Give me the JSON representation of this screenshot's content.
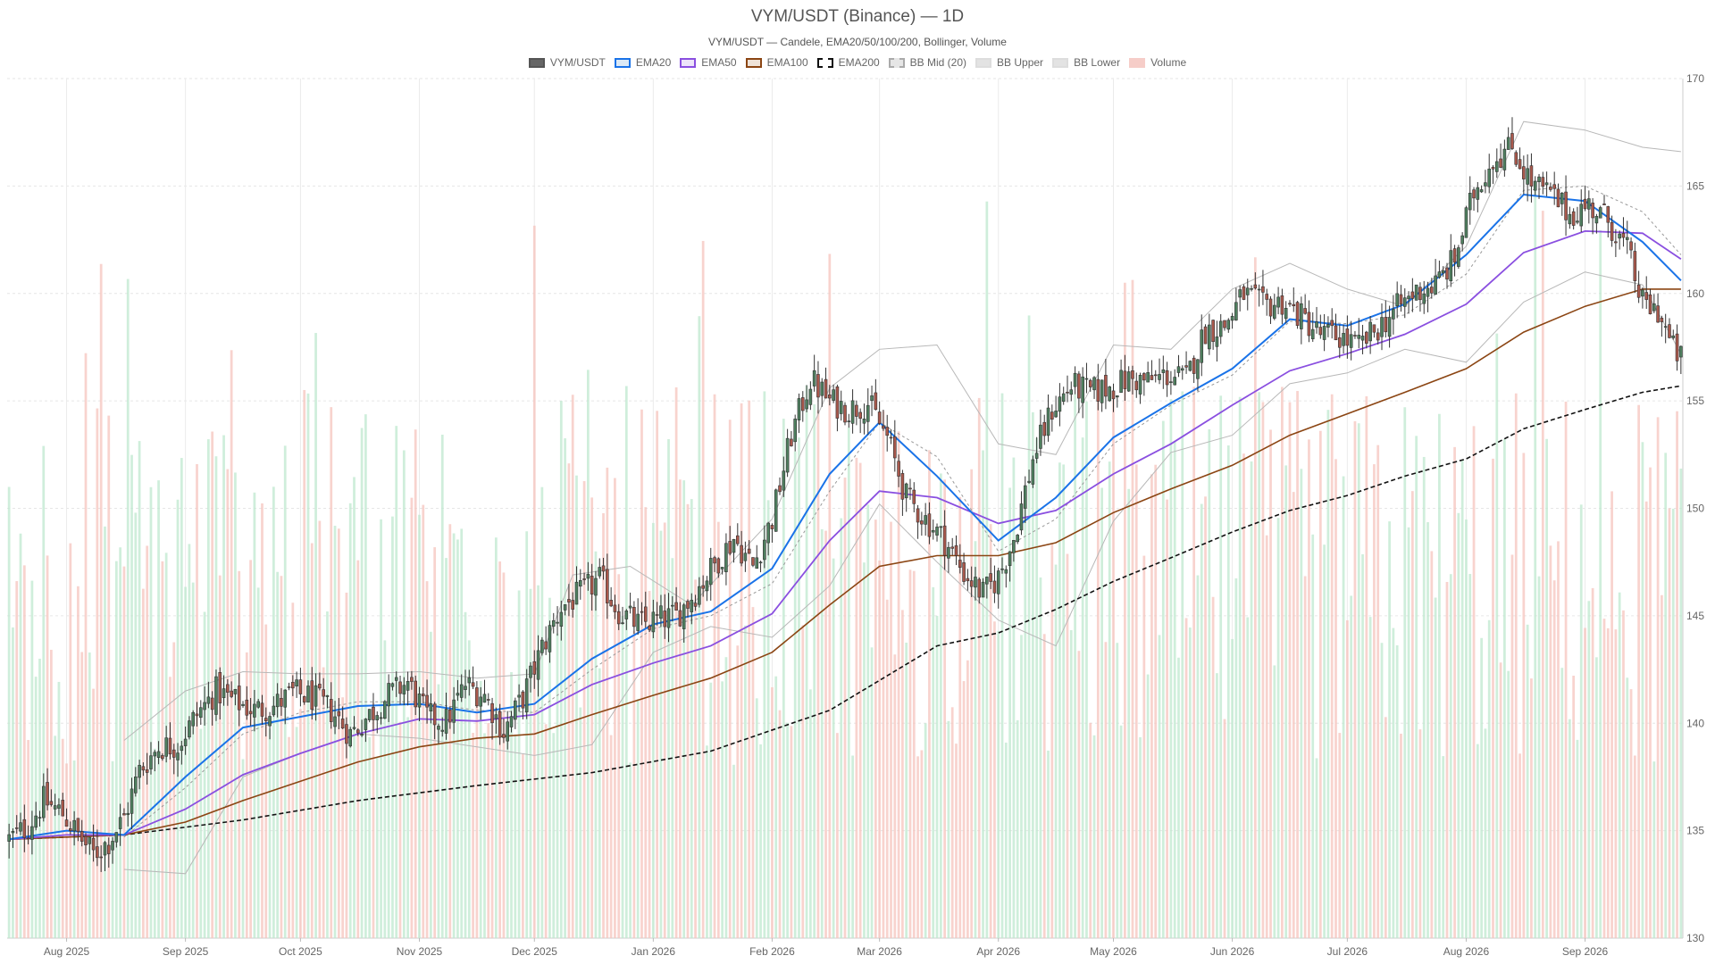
{
  "chart_data": {
    "type": "candlestick",
    "title": "VYM/USDT (Binance) — 1D",
    "subtitle": "VYM/USDT — Candele, EMA20/50/100/200, Bollinger, Volume",
    "legend": [
      {
        "name": "VYM/USDT",
        "fill": "#666666",
        "stroke": "#555555",
        "dash": false
      },
      {
        "name": "EMA20",
        "fill": "#dbe9f6",
        "stroke": "#1a73e8",
        "dash": false
      },
      {
        "name": "EMA50",
        "fill": "#ede4fa",
        "stroke": "#8a4fe0",
        "dash": false
      },
      {
        "name": "EMA100",
        "fill": "#efe3d8",
        "stroke": "#8b4513",
        "dash": false
      },
      {
        "name": "EMA200",
        "fill": "#ffffff",
        "stroke": "#111111",
        "dash": true
      },
      {
        "name": "BB Mid (20)",
        "fill": "#e6e6e6",
        "stroke": "#aaaaaa",
        "dash": true
      },
      {
        "name": "BB Upper",
        "fill": "#e3e3e3",
        "stroke": "#dddddd",
        "dash": false
      },
      {
        "name": "BB Lower",
        "fill": "#e3e3e3",
        "stroke": "#dddddd",
        "dash": false
      },
      {
        "name": "Volume",
        "fill": "#f6cdc8",
        "stroke": "#f6cdc8",
        "dash": false
      }
    ],
    "x_range": [
      "2025-07-17",
      "2026-09-26"
    ],
    "ylim": [
      130,
      170
    ],
    "y_ticks": [
      130,
      135,
      140,
      145,
      150,
      155,
      160,
      165,
      170
    ],
    "x_ticks": [
      {
        "label": "Aug 2025",
        "date": "2025-08-01"
      },
      {
        "label": "Sep 2025",
        "date": "2025-09-01"
      },
      {
        "label": "Oct 2025",
        "date": "2025-10-01"
      },
      {
        "label": "Nov 2025",
        "date": "2025-11-01"
      },
      {
        "label": "Dec 2025",
        "date": "2025-12-01"
      },
      {
        "label": "Jan 2026",
        "date": "2026-01-01"
      },
      {
        "label": "Feb 2026",
        "date": "2026-02-01"
      },
      {
        "label": "Mar 2026",
        "date": "2026-03-01"
      },
      {
        "label": "Apr 2026",
        "date": "2026-04-01"
      },
      {
        "label": "May 2026",
        "date": "2026-05-01"
      },
      {
        "label": "Jun 2026",
        "date": "2026-06-01"
      },
      {
        "label": "Jul 2026",
        "date": "2026-07-01"
      },
      {
        "label": "Aug 2026",
        "date": "2026-08-01"
      },
      {
        "label": "Sep 2026",
        "date": "2026-09-01"
      }
    ],
    "close_path": [
      [
        "2025-07-17",
        134.6
      ],
      [
        "2025-07-22",
        135.2
      ],
      [
        "2025-07-26",
        136.4
      ],
      [
        "2025-07-31",
        135.8
      ],
      [
        "2025-08-04",
        134.8
      ],
      [
        "2025-08-08",
        133.9
      ],
      [
        "2025-08-12",
        134.5
      ],
      [
        "2025-08-16",
        135.6
      ],
      [
        "2025-08-20",
        137.8
      ],
      [
        "2025-08-25",
        138.9
      ],
      [
        "2025-08-30",
        139.0
      ],
      [
        "2025-09-04",
        140.4
      ],
      [
        "2025-09-09",
        141.5
      ],
      [
        "2025-09-14",
        141.0
      ],
      [
        "2025-09-19",
        140.6
      ],
      [
        "2025-09-24",
        140.8
      ],
      [
        "2025-09-29",
        141.4
      ],
      [
        "2025-10-04",
        141.2
      ],
      [
        "2025-10-09",
        140.6
      ],
      [
        "2025-10-14",
        139.5
      ],
      [
        "2025-10-19",
        140.4
      ],
      [
        "2025-10-24",
        141.3
      ],
      [
        "2025-10-29",
        141.9
      ],
      [
        "2025-11-03",
        140.3
      ],
      [
        "2025-11-08",
        140.1
      ],
      [
        "2025-11-13",
        141.8
      ],
      [
        "2025-11-18",
        141.3
      ],
      [
        "2025-11-23",
        139.6
      ],
      [
        "2025-11-28",
        141.2
      ],
      [
        "2025-12-03",
        143.5
      ],
      [
        "2025-12-08",
        145.4
      ],
      [
        "2025-12-13",
        146.0
      ],
      [
        "2025-12-18",
        146.7
      ],
      [
        "2025-12-23",
        145.2
      ],
      [
        "2025-12-28",
        144.6
      ],
      [
        "2026-01-02",
        144.8
      ],
      [
        "2026-01-07",
        145.0
      ],
      [
        "2026-01-12",
        146.1
      ],
      [
        "2026-01-17",
        147.4
      ],
      [
        "2026-01-22",
        148.6
      ],
      [
        "2026-01-27",
        147.3
      ],
      [
        "2026-02-01",
        149.5
      ],
      [
        "2026-02-06",
        153.4
      ],
      [
        "2026-02-11",
        156.0
      ],
      [
        "2026-02-16",
        155.0
      ],
      [
        "2026-02-21",
        154.6
      ],
      [
        "2026-02-26",
        154.9
      ],
      [
        "2026-03-03",
        153.3
      ],
      [
        "2026-03-08",
        150.5
      ],
      [
        "2026-03-13",
        149.5
      ],
      [
        "2026-03-18",
        148.5
      ],
      [
        "2026-03-23",
        147.0
      ],
      [
        "2026-03-28",
        146.0
      ],
      [
        "2026-04-01",
        146.8
      ],
      [
        "2026-04-05",
        148.6
      ],
      [
        "2026-04-10",
        152.3
      ],
      [
        "2026-04-15",
        154.6
      ],
      [
        "2026-04-20",
        155.7
      ],
      [
        "2026-04-25",
        155.4
      ],
      [
        "2026-04-30",
        155.6
      ],
      [
        "2026-05-05",
        156.0
      ],
      [
        "2026-05-10",
        155.9
      ],
      [
        "2026-05-15",
        156.2
      ],
      [
        "2026-05-20",
        156.0
      ],
      [
        "2026-05-25",
        158.3
      ],
      [
        "2026-05-30",
        158.5
      ],
      [
        "2026-06-04",
        160.0
      ],
      [
        "2026-06-09",
        159.4
      ],
      [
        "2026-06-14",
        159.6
      ],
      [
        "2026-06-19",
        158.9
      ],
      [
        "2026-06-24",
        158.1
      ],
      [
        "2026-06-29",
        158.0
      ],
      [
        "2026-07-04",
        157.5
      ],
      [
        "2026-07-09",
        158.4
      ],
      [
        "2026-07-14",
        159.3
      ],
      [
        "2026-07-19",
        160.1
      ],
      [
        "2026-07-24",
        160.4
      ],
      [
        "2026-07-29",
        161.6
      ],
      [
        "2026-08-03",
        164.7
      ],
      [
        "2026-08-08",
        166.3
      ],
      [
        "2026-08-13",
        166.8
      ],
      [
        "2026-08-18",
        165.1
      ],
      [
        "2026-08-23",
        164.6
      ],
      [
        "2026-08-28",
        163.7
      ],
      [
        "2026-09-02",
        164.1
      ],
      [
        "2026-09-07",
        163.4
      ],
      [
        "2026-09-12",
        162.0
      ],
      [
        "2026-09-16",
        159.5
      ],
      [
        "2026-09-20",
        159.2
      ],
      [
        "2026-09-24",
        157.4
      ],
      [
        "2026-09-26",
        157.0
      ]
    ],
    "ema20": [
      [
        "2025-07-17",
        134.6
      ],
      [
        "2025-08-01",
        135.0
      ],
      [
        "2025-08-16",
        134.8
      ],
      [
        "2025-09-01",
        137.5
      ],
      [
        "2025-09-16",
        139.8
      ],
      [
        "2025-10-01",
        140.3
      ],
      [
        "2025-10-16",
        140.8
      ],
      [
        "2025-11-01",
        140.9
      ],
      [
        "2025-11-16",
        140.5
      ],
      [
        "2025-12-01",
        140.9
      ],
      [
        "2025-12-16",
        143.0
      ],
      [
        "2026-01-01",
        144.6
      ],
      [
        "2026-01-16",
        145.2
      ],
      [
        "2026-02-01",
        147.2
      ],
      [
        "2026-02-16",
        151.6
      ],
      [
        "2026-03-01",
        154.0
      ],
      [
        "2026-03-16",
        151.5
      ],
      [
        "2026-04-01",
        148.5
      ],
      [
        "2026-04-16",
        150.5
      ],
      [
        "2026-05-01",
        153.3
      ],
      [
        "2026-05-16",
        154.9
      ],
      [
        "2026-06-01",
        156.5
      ],
      [
        "2026-06-16",
        158.8
      ],
      [
        "2026-07-01",
        158.5
      ],
      [
        "2026-07-16",
        159.5
      ],
      [
        "2026-08-01",
        161.8
      ],
      [
        "2026-08-16",
        164.6
      ],
      [
        "2026-09-01",
        164.3
      ],
      [
        "2026-09-16",
        162.4
      ],
      [
        "2026-09-26",
        160.6
      ]
    ],
    "ema50": [
      [
        "2025-07-17",
        134.6
      ],
      [
        "2025-08-01",
        134.8
      ],
      [
        "2025-08-16",
        134.8
      ],
      [
        "2025-09-01",
        136.0
      ],
      [
        "2025-09-16",
        137.6
      ],
      [
        "2025-10-01",
        138.6
      ],
      [
        "2025-10-16",
        139.5
      ],
      [
        "2025-11-01",
        140.2
      ],
      [
        "2025-11-16",
        140.1
      ],
      [
        "2025-12-01",
        140.4
      ],
      [
        "2025-12-16",
        141.8
      ],
      [
        "2026-01-01",
        142.8
      ],
      [
        "2026-01-16",
        143.6
      ],
      [
        "2026-02-01",
        145.1
      ],
      [
        "2026-02-16",
        148.5
      ],
      [
        "2026-03-01",
        150.8
      ],
      [
        "2026-03-16",
        150.5
      ],
      [
        "2026-04-01",
        149.3
      ],
      [
        "2026-04-16",
        149.9
      ],
      [
        "2026-05-01",
        151.6
      ],
      [
        "2026-05-16",
        153.0
      ],
      [
        "2026-06-01",
        154.8
      ],
      [
        "2026-06-16",
        156.4
      ],
      [
        "2026-07-01",
        157.2
      ],
      [
        "2026-07-16",
        158.1
      ],
      [
        "2026-08-01",
        159.5
      ],
      [
        "2026-08-16",
        161.9
      ],
      [
        "2026-09-01",
        162.9
      ],
      [
        "2026-09-16",
        162.8
      ],
      [
        "2026-09-26",
        161.6
      ]
    ],
    "ema100": [
      [
        "2025-07-17",
        134.6
      ],
      [
        "2025-08-01",
        134.7
      ],
      [
        "2025-08-16",
        134.8
      ],
      [
        "2025-09-01",
        135.4
      ],
      [
        "2025-09-16",
        136.4
      ],
      [
        "2025-10-01",
        137.3
      ],
      [
        "2025-10-16",
        138.2
      ],
      [
        "2025-11-01",
        138.9
      ],
      [
        "2025-11-16",
        139.3
      ],
      [
        "2025-12-01",
        139.5
      ],
      [
        "2025-12-16",
        140.4
      ],
      [
        "2026-01-01",
        141.3
      ],
      [
        "2026-01-16",
        142.1
      ],
      [
        "2026-02-01",
        143.3
      ],
      [
        "2026-02-16",
        145.5
      ],
      [
        "2026-03-01",
        147.3
      ],
      [
        "2026-03-16",
        147.8
      ],
      [
        "2026-04-01",
        147.8
      ],
      [
        "2026-04-16",
        148.4
      ],
      [
        "2026-05-01",
        149.8
      ],
      [
        "2026-05-16",
        150.9
      ],
      [
        "2026-06-01",
        152.0
      ],
      [
        "2026-06-16",
        153.4
      ],
      [
        "2026-07-01",
        154.4
      ],
      [
        "2026-07-16",
        155.4
      ],
      [
        "2026-08-01",
        156.5
      ],
      [
        "2026-08-16",
        158.2
      ],
      [
        "2026-09-01",
        159.4
      ],
      [
        "2026-09-16",
        160.2
      ],
      [
        "2026-09-26",
        160.2
      ]
    ],
    "ema200": [
      [
        "2025-07-17",
        134.6
      ],
      [
        "2025-08-16",
        134.8
      ],
      [
        "2025-09-16",
        135.5
      ],
      [
        "2025-10-16",
        136.4
      ],
      [
        "2025-11-16",
        137.1
      ],
      [
        "2025-12-16",
        137.7
      ],
      [
        "2026-01-16",
        138.7
      ],
      [
        "2026-02-16",
        140.6
      ],
      [
        "2026-03-16",
        143.6
      ],
      [
        "2026-04-01",
        144.2
      ],
      [
        "2026-04-16",
        145.3
      ],
      [
        "2026-05-01",
        146.6
      ],
      [
        "2026-05-16",
        147.7
      ],
      [
        "2026-06-01",
        148.9
      ],
      [
        "2026-06-16",
        149.9
      ],
      [
        "2026-07-01",
        150.6
      ],
      [
        "2026-07-16",
        151.5
      ],
      [
        "2026-08-01",
        152.3
      ],
      [
        "2026-08-16",
        153.7
      ],
      [
        "2026-09-01",
        154.6
      ],
      [
        "2026-09-16",
        155.4
      ],
      [
        "2026-09-26",
        155.7
      ]
    ],
    "bb_mid": [
      [
        "2025-08-16",
        134.7
      ],
      [
        "2025-09-01",
        137.0
      ],
      [
        "2025-09-16",
        139.5
      ],
      [
        "2025-10-01",
        140.5
      ],
      [
        "2025-10-16",
        141.0
      ],
      [
        "2025-11-01",
        141.0
      ],
      [
        "2025-11-16",
        140.6
      ],
      [
        "2025-12-01",
        140.5
      ],
      [
        "2025-12-16",
        142.5
      ],
      [
        "2026-01-01",
        144.4
      ],
      [
        "2026-01-16",
        145.0
      ],
      [
        "2026-02-01",
        146.5
      ],
      [
        "2026-02-16",
        150.8
      ],
      [
        "2026-03-01",
        154.0
      ],
      [
        "2026-03-16",
        152.4
      ],
      [
        "2026-04-01",
        148.0
      ],
      [
        "2026-04-16",
        149.5
      ],
      [
        "2026-05-01",
        153.0
      ],
      [
        "2026-05-16",
        154.8
      ],
      [
        "2026-06-01",
        156.2
      ],
      [
        "2026-06-16",
        158.7
      ],
      [
        "2026-07-01",
        158.6
      ],
      [
        "2026-07-16",
        159.0
      ],
      [
        "2026-08-01",
        160.9
      ],
      [
        "2026-08-16",
        164.8
      ],
      [
        "2026-09-01",
        165.0
      ],
      [
        "2026-09-16",
        163.8
      ],
      [
        "2026-09-26",
        161.8
      ]
    ],
    "bb_upper": [
      [
        "2025-08-16",
        139.2
      ],
      [
        "2025-09-01",
        141.5
      ],
      [
        "2025-09-16",
        142.4
      ],
      [
        "2025-10-01",
        142.3
      ],
      [
        "2025-10-16",
        142.3
      ],
      [
        "2025-11-01",
        142.4
      ],
      [
        "2025-11-16",
        142.1
      ],
      [
        "2025-12-01",
        142.3
      ],
      [
        "2025-12-11",
        146.9
      ],
      [
        "2025-12-26",
        147.3
      ],
      [
        "2026-01-11",
        145.5
      ],
      [
        "2026-02-01",
        149.5
      ],
      [
        "2026-02-16",
        155.6
      ],
      [
        "2026-03-01",
        157.4
      ],
      [
        "2026-03-16",
        157.6
      ],
      [
        "2026-04-01",
        153.0
      ],
      [
        "2026-04-16",
        152.5
      ],
      [
        "2026-05-01",
        157.6
      ],
      [
        "2026-05-16",
        157.4
      ],
      [
        "2026-06-01",
        160.2
      ],
      [
        "2026-06-16",
        161.4
      ],
      [
        "2026-07-01",
        160.2
      ],
      [
        "2026-07-16",
        159.4
      ],
      [
        "2026-08-01",
        162.2
      ],
      [
        "2026-08-16",
        168.0
      ],
      [
        "2026-09-01",
        167.6
      ],
      [
        "2026-09-16",
        166.8
      ],
      [
        "2026-09-26",
        166.6
      ]
    ],
    "bb_lower": [
      [
        "2025-08-16",
        133.2
      ],
      [
        "2025-09-01",
        133.0
      ],
      [
        "2025-09-16",
        137.5
      ],
      [
        "2025-10-01",
        138.6
      ],
      [
        "2025-10-16",
        139.5
      ],
      [
        "2025-11-01",
        139.3
      ],
      [
        "2025-11-16",
        138.9
      ],
      [
        "2025-12-01",
        138.5
      ],
      [
        "2025-12-16",
        139.0
      ],
      [
        "2026-01-01",
        143.3
      ],
      [
        "2026-01-16",
        144.5
      ],
      [
        "2026-02-01",
        144.0
      ],
      [
        "2026-02-16",
        146.4
      ],
      [
        "2026-03-01",
        150.2
      ],
      [
        "2026-03-16",
        147.5
      ],
      [
        "2026-04-01",
        144.8
      ],
      [
        "2026-04-16",
        143.6
      ],
      [
        "2026-05-01",
        149.4
      ],
      [
        "2026-05-16",
        152.6
      ],
      [
        "2026-06-01",
        153.4
      ],
      [
        "2026-06-16",
        155.8
      ],
      [
        "2026-07-01",
        156.3
      ],
      [
        "2026-07-16",
        157.4
      ],
      [
        "2026-08-01",
        156.8
      ],
      [
        "2026-08-16",
        159.6
      ],
      [
        "2026-09-01",
        161.0
      ],
      [
        "2026-09-16",
        160.4
      ],
      [
        "2026-09-26",
        157.2
      ]
    ],
    "volume_range": [
      0,
      100
    ]
  }
}
